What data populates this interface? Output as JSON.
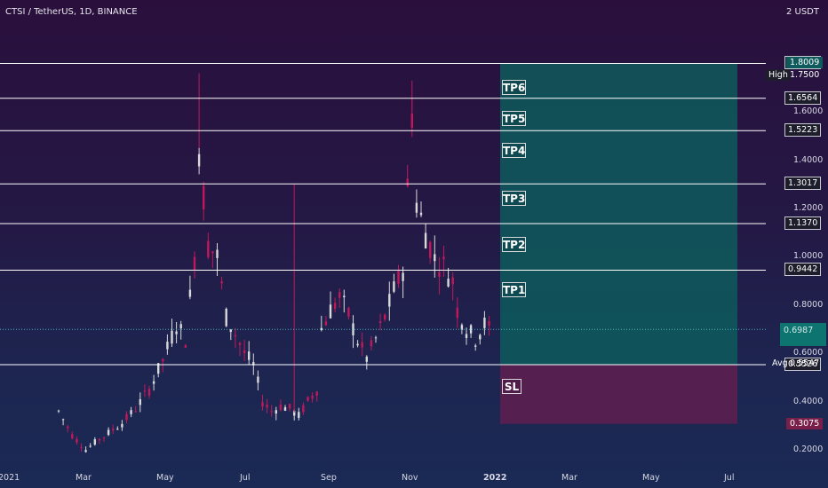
{
  "header": {
    "symbol_text": "CTSI / TetherUS, 1D, BINANCE",
    "unit": "2 USDT"
  },
  "chart_data": {
    "type": "candlestick",
    "title": "CTSI / TetherUS, 1D, BINANCE",
    "ylabel": "USDT",
    "ylim": [
      0.12,
      2.0
    ],
    "y_ticks": [
      "0.2000",
      "0.4000",
      "0.6000",
      "0.8000",
      "1.0000",
      "1.2000",
      "1.4000",
      "1.6000"
    ],
    "x_ticks": [
      "2021",
      "Mar",
      "May",
      "Jul",
      "Sep",
      "Nov",
      "2022",
      "Mar",
      "May",
      "Jul"
    ],
    "grid": false,
    "price_path": [
      [
        0,
        0.36
      ],
      [
        3,
        0.26
      ],
      [
        6,
        0.2
      ],
      [
        8,
        0.23
      ],
      [
        11,
        0.27
      ],
      [
        14,
        0.31
      ],
      [
        17,
        0.37
      ],
      [
        20,
        0.45
      ],
      [
        23,
        0.57
      ],
      [
        26,
        0.72
      ],
      [
        28,
        0.66
      ],
      [
        30,
        1.0
      ],
      [
        31,
        1.45
      ],
      [
        33,
        1.05
      ],
      [
        35,
        1.0
      ],
      [
        37,
        0.75
      ],
      [
        39,
        0.68
      ],
      [
        41,
        0.6
      ],
      [
        43,
        0.55
      ],
      [
        45,
        0.4
      ],
      [
        47,
        0.36
      ],
      [
        49,
        0.38
      ],
      [
        51,
        0.37
      ],
      [
        53,
        0.34
      ],
      [
        55,
        0.4
      ],
      [
        57,
        0.45
      ],
      [
        58,
        0.7
      ],
      [
        60,
        0.78
      ],
      [
        62,
        0.83
      ],
      [
        64,
        0.76
      ],
      [
        66,
        0.65
      ],
      [
        68,
        0.58
      ],
      [
        70,
        0.66
      ],
      [
        72,
        0.75
      ],
      [
        74,
        0.86
      ],
      [
        76,
        0.95
      ],
      [
        78,
        1.6
      ],
      [
        79,
        1.22
      ],
      [
        81,
        1.1
      ],
      [
        83,
        0.99
      ],
      [
        85,
        0.96
      ],
      [
        87,
        0.9
      ],
      [
        88,
        0.78
      ],
      [
        90,
        0.7
      ],
      [
        92,
        0.66
      ],
      [
        94,
        0.72
      ],
      [
        95,
        0.7
      ]
    ],
    "annotations": {
      "levels": [
        {
          "label": "1.8009",
          "value": 1.8009,
          "color": "#ffffff"
        },
        {
          "label": "1.6564",
          "value": 1.6564,
          "color": "#ffffff"
        },
        {
          "label": "1.5223",
          "value": 1.5223,
          "color": "#ffffff"
        },
        {
          "label": "1.3017",
          "value": 1.3017,
          "color": "#ffffff"
        },
        {
          "label": "1.1370",
          "value": 1.137,
          "color": "#ffffff"
        },
        {
          "label": "0.9442",
          "value": 0.9442,
          "color": "#ffffff"
        },
        {
          "label": "0.5526",
          "value": 0.5526,
          "color": "#ffffff"
        }
      ],
      "targets": [
        {
          "label": "TP6",
          "value": 1.7
        },
        {
          "label": "TP5",
          "value": 1.57
        },
        {
          "label": "TP4",
          "value": 1.44
        },
        {
          "label": "TP3",
          "value": 1.24
        },
        {
          "label": "TP2",
          "value": 1.05
        },
        {
          "label": "TP1",
          "value": 0.86
        },
        {
          "label": "SL",
          "value": 0.46
        }
      ],
      "profit_zone": {
        "from": 0.5547,
        "to": 1.8009,
        "color": "#0e5a5c"
      },
      "loss_zone": {
        "from": 0.3075,
        "to": 0.5526,
        "color": "#5c2050"
      },
      "price_badges": [
        {
          "label": "1.8009",
          "value": 1.8009,
          "bg": "#0e5a5c",
          "fg": "#ffffff"
        },
        {
          "label": "1.7500",
          "value": 1.75,
          "bg": "transparent",
          "fg": "#ffffff",
          "tag": "High"
        },
        {
          "label": "0.6987",
          "value": 0.6987,
          "bg": "#0e7470",
          "fg": "#cfe9ea"
        },
        {
          "label": "0.5547",
          "value": 0.5547,
          "bg": "transparent",
          "fg": "#ffffff",
          "tag": "Avg"
        },
        {
          "label": "0.3075",
          "value": 0.3075,
          "bg": "#7a1f4a",
          "fg": "#ffffff"
        }
      ]
    }
  },
  "colors": {
    "up": "#d9d9d9",
    "down": "#c2185b",
    "line": "#ffffff"
  }
}
